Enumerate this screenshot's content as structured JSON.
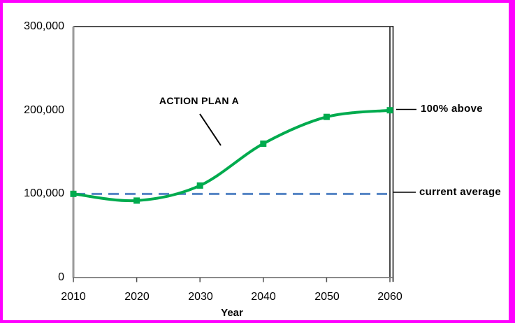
{
  "page": {
    "border_color": "#ff00ff",
    "background_color": "#ffffff"
  },
  "chart_data": {
    "type": "line",
    "title": "",
    "xlabel": "Year",
    "ylabel": "",
    "x": [
      2010,
      2020,
      2030,
      2040,
      2050,
      2060
    ],
    "series": [
      {
        "name": "ACTION PLAN A",
        "values": [
          100000,
          92000,
          110000,
          160000,
          192000,
          200000
        ],
        "color": "#00AB4E",
        "marker": "square",
        "line_style": "smooth"
      }
    ],
    "reference_line": {
      "label": "current average",
      "value": 100000,
      "color": "#5585C5",
      "style": "dashed"
    },
    "xlim": [
      2010,
      2060
    ],
    "ylim": [
      0,
      300000
    ],
    "grid": false,
    "legend_position": "none",
    "x_tick_labels": [
      "2010",
      "2020",
      "2030",
      "2040",
      "2050",
      "2060"
    ],
    "y_tick_labels_top_down": [
      "300,000",
      "200,000",
      "100,000",
      "0"
    ],
    "annotations": {
      "series_callout": "ACTION PLAN A",
      "right_top": "100% above",
      "right_bottom": "current average"
    }
  }
}
